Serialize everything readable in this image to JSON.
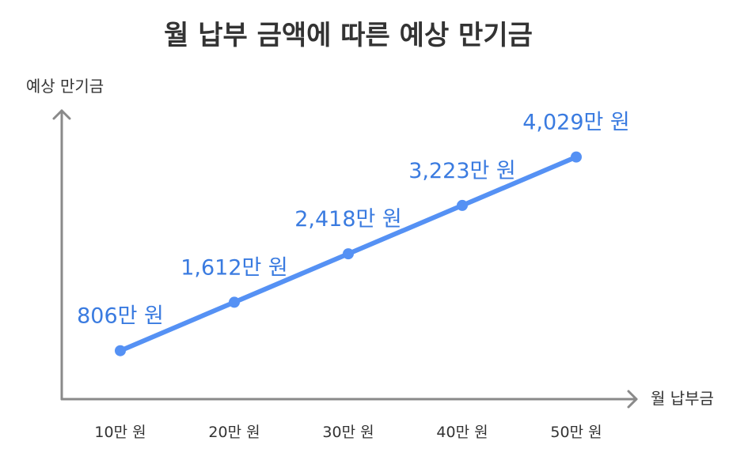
{
  "chart_data": {
    "type": "line",
    "title": "월 납부 금액에 따른 예상 만기금",
    "xlabel": "월 납부금",
    "ylabel": "예상 만기금",
    "categories": [
      "10만 원",
      "20만 원",
      "30만 원",
      "40만 원",
      "50만 원"
    ],
    "values": [
      806,
      1612,
      2418,
      3223,
      4029
    ],
    "data_labels": [
      "806만 원",
      "1,612만 원",
      "2,418만 원",
      "3,223만 원",
      "4,029만 원"
    ],
    "unit": "만 원",
    "ylim": [
      0,
      4800
    ],
    "grid": false,
    "legend": "none",
    "colors": {
      "series": "#5591f4",
      "label": "#3a7be0",
      "axis": "#8a8a8a",
      "text": "#333333"
    }
  }
}
